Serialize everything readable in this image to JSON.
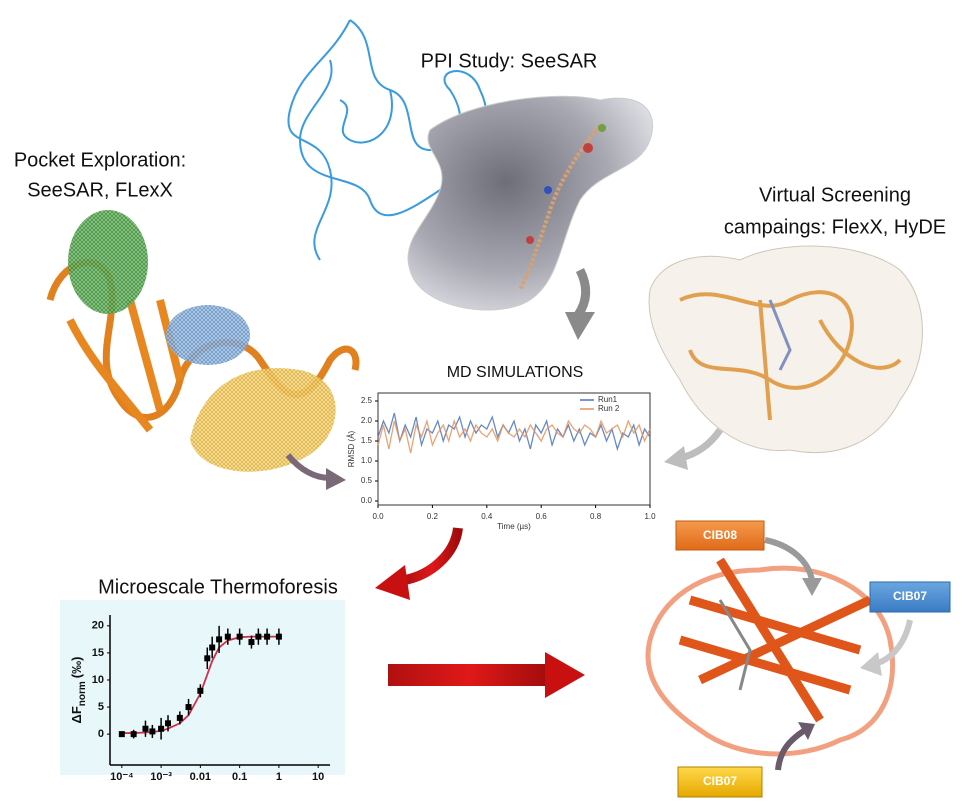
{
  "labels": {
    "ppi": "PPI Study: SeeSAR",
    "pocket": [
      "Pocket Exploration:",
      "SeeSAR, FLexX"
    ],
    "screening": [
      "Virtual Screening",
      "campaings: FlexX, HyDE"
    ]
  },
  "tags": [
    "CIB08",
    "CIB07",
    "CIB07"
  ],
  "md_chart": {
    "type": "line",
    "title": "MD SIMULATIONS",
    "x_label": "Time (µs)",
    "y_label": "RMSD (Å)",
    "xlim": [
      0,
      1
    ],
    "ylim": [
      -0.1,
      2.7
    ],
    "xticks": [
      {
        "value": 0,
        "label": "0.0"
      },
      0.2,
      0.4,
      0.6,
      0.8,
      {
        "value": 1,
        "label": "1.0"
      }
    ],
    "yticks": [
      {
        "value": 0,
        "label": "0.0"
      },
      0.5,
      {
        "value": 1,
        "label": "1.0"
      },
      1.5,
      {
        "value": 2,
        "label": "2.0"
      },
      2.5
    ],
    "legend": "upper right",
    "x": [
      0,
      0.02,
      0.04,
      0.06,
      0.08,
      0.1,
      0.12,
      0.14,
      0.16,
      0.18,
      0.2,
      0.22,
      0.24,
      0.26,
      0.28,
      0.3,
      0.32,
      0.34,
      0.36,
      0.38,
      0.4,
      0.42,
      0.44,
      0.46,
      0.48,
      0.5,
      0.52,
      0.54,
      0.56,
      0.58,
      0.6,
      0.62,
      0.64,
      0.66,
      0.68,
      0.7,
      0.72,
      0.74,
      0.76,
      0.78,
      0.8,
      0.82,
      0.84,
      0.86,
      0.88,
      0.9,
      0.92,
      0.94,
      0.96,
      0.98,
      1
    ],
    "series": [
      {
        "name": "Run1",
        "color": "#4a74c0",
        "values": [
          1.6,
          2.0,
          1.7,
          2.2,
          1.5,
          1.9,
          1.6,
          2.1,
          1.4,
          1.8,
          1.7,
          2.0,
          1.5,
          1.9,
          1.8,
          2.1,
          1.6,
          2.0,
          1.7,
          1.9,
          1.8,
          2.1,
          1.6,
          1.9,
          1.7,
          2.0,
          1.5,
          1.8,
          1.3,
          1.9,
          1.7,
          2.0,
          1.4,
          1.8,
          1.6,
          1.9,
          1.5,
          1.8,
          1.4,
          1.7,
          1.6,
          1.9,
          1.5,
          1.8,
          1.3,
          1.7,
          1.6,
          1.9,
          1.4,
          1.8,
          1.6
        ]
      },
      {
        "name": "Run 2",
        "color": "#e8935a",
        "values": [
          1.4,
          1.9,
          1.3,
          2.0,
          1.5,
          1.8,
          1.2,
          1.9,
          1.6,
          2.0,
          1.4,
          1.7,
          1.9,
          1.5,
          2.0,
          1.6,
          1.8,
          1.5,
          1.9,
          1.7,
          1.6,
          1.8,
          1.5,
          1.9,
          1.7,
          1.6,
          1.8,
          1.6,
          1.9,
          1.7,
          1.5,
          1.8,
          1.9,
          1.7,
          1.6,
          2.0,
          1.8,
          1.7,
          1.9,
          1.8,
          1.6,
          2.0,
          1.7,
          1.8,
          1.9,
          1.6,
          2.0,
          1.7,
          1.9,
          1.5,
          1.8
        ]
      }
    ]
  },
  "mst_chart": {
    "type": "scatter",
    "title": "Microescale Thermoforesis",
    "y_label": {
      "main": "ΔF",
      "sub": "norm",
      "unit": "(‰)"
    },
    "log_x": true,
    "xlim": [
      5e-05,
      20
    ],
    "ylim": [
      -5.7,
      22
    ],
    "xticks": [
      {
        "value": 0.0001,
        "label": "10⁻⁴"
      },
      {
        "value": 0.001,
        "label": "10⁻³"
      },
      0.01,
      0.1,
      1,
      10
    ],
    "yticks": [
      0,
      5,
      10,
      15,
      20
    ],
    "color": "#000000",
    "fit_color": "#d0304a",
    "x": [
      0.0001,
      0.0002,
      0.0004,
      0.0006,
      0.001,
      0.0015,
      0.003,
      0.005,
      0.01,
      0.015,
      0.02,
      0.03,
      0.05,
      0.1,
      0.2,
      0.3,
      0.5,
      1
    ],
    "values": [
      0,
      0,
      1,
      0.5,
      1,
      2,
      3,
      5,
      8,
      14,
      16,
      17.5,
      18,
      18,
      17,
      18,
      18,
      18
    ],
    "errors": [
      0.5,
      0.8,
      1.5,
      1.2,
      2,
      1.5,
      1.2,
      1.5,
      1.2,
      2,
      2,
      2.5,
      1.5,
      1.5,
      1.2,
      1.5,
      1.5,
      1.5
    ],
    "fit": [
      0.2,
      0.2,
      0.3,
      0.4,
      0.6,
      1,
      2,
      3.5,
      7.5,
      11,
      13.5,
      16,
      17.3,
      17.9,
      18,
      18,
      18,
      18
    ]
  }
}
